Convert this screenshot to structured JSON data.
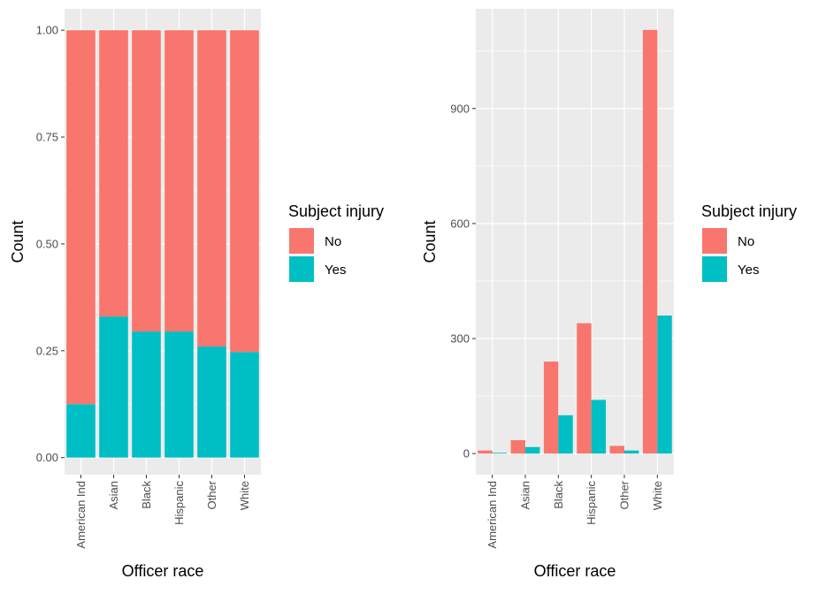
{
  "chart_data": [
    {
      "type": "bar",
      "stacked": true,
      "normalized": true,
      "categories": [
        "American Ind",
        "Asian",
        "Black",
        "Hispanic",
        "Other",
        "White"
      ],
      "series": [
        {
          "name": "No",
          "values": [
            0.875,
            0.67,
            0.705,
            0.705,
            0.74,
            0.753
          ]
        },
        {
          "name": "Yes",
          "values": [
            0.125,
            0.33,
            0.295,
            0.295,
            0.26,
            0.247
          ]
        }
      ],
      "xlabel": "Officer race",
      "ylabel": "Count",
      "ylim": [
        -0.04,
        1.05
      ],
      "yticks": [
        0,
        0.25,
        0.5,
        0.75,
        1
      ],
      "ytick_labels": [
        "0.00",
        "0.25",
        "0.50",
        "0.75",
        "1.00"
      ],
      "legend": {
        "title": "Subject injury",
        "placement": "right",
        "labels": [
          "No",
          "Yes"
        ]
      },
      "grid": true
    },
    {
      "type": "bar",
      "stacked": false,
      "categories": [
        "American Ind",
        "Asian",
        "Black",
        "Hispanic",
        "Other",
        "White"
      ],
      "series": [
        {
          "name": "No",
          "values": [
            8,
            35,
            240,
            340,
            20,
            1105
          ]
        },
        {
          "name": "Yes",
          "values": [
            2,
            17,
            100,
            140,
            8,
            360
          ]
        }
      ],
      "xlabel": "Officer race",
      "ylabel": "Count",
      "ylim": [
        -55,
        1160
      ],
      "yticks": [
        0,
        300,
        600,
        900
      ],
      "ytick_labels": [
        "0",
        "300",
        "600",
        "900"
      ],
      "legend": {
        "title": "Subject injury",
        "placement": "right",
        "labels": [
          "No",
          "Yes"
        ]
      },
      "grid": true
    }
  ],
  "colors": {
    "No": "#F8766D",
    "Yes": "#00BFC4",
    "panel": "#EBEBEB",
    "grid": "#FFFFFF"
  }
}
